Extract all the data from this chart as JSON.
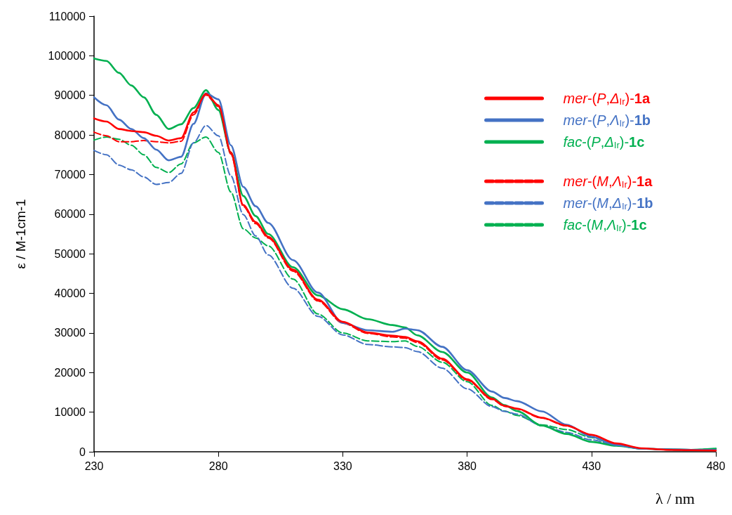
{
  "chart_data": {
    "type": "line",
    "xlabel": "λ / nm",
    "ylabel": "ε / M-1cm-1",
    "xlim": [
      230,
      480
    ],
    "xticks": [
      230,
      280,
      330,
      380,
      430,
      480
    ],
    "ylim": [
      0,
      110000
    ],
    "yticks": [
      0,
      10000,
      20000,
      30000,
      40000,
      50000,
      60000,
      70000,
      80000,
      90000,
      100000,
      110000
    ],
    "grid": false,
    "legend": "top right",
    "marker": "none",
    "x": [
      230,
      235,
      240,
      245,
      250,
      255,
      260,
      265,
      270,
      275,
      280,
      285,
      290,
      295,
      300,
      310,
      320,
      330,
      340,
      350,
      355,
      360,
      370,
      380,
      390,
      395,
      400,
      410,
      420,
      430,
      440,
      450,
      460,
      470,
      480
    ],
    "series": [
      {
        "name": "mer-(P,Δ$_{Ir}$)-1a",
        "color": "#ff0000",
        "line_style": "solid",
        "values": [
          84200,
          83400,
          81500,
          81000,
          80700,
          79800,
          78600,
          79200,
          85700,
          90400,
          87500,
          75600,
          62300,
          58000,
          54300,
          46000,
          38400,
          32800,
          30100,
          29300,
          29000,
          27900,
          23500,
          18300,
          13400,
          11600,
          10900,
          8600,
          6600,
          4300,
          2100,
          900,
          500,
          400,
          300
        ]
      },
      {
        "name": "mer-(P,Λ$_{Ir}$)-1b",
        "color": "#4472c4",
        "line_style": "solid",
        "values": [
          89500,
          87500,
          83900,
          81500,
          79200,
          76300,
          73600,
          74500,
          82800,
          90500,
          89000,
          77400,
          66900,
          62000,
          57800,
          48400,
          40200,
          32500,
          30700,
          30300,
          31100,
          30700,
          26500,
          20600,
          15200,
          13600,
          12800,
          10200,
          6800,
          3800,
          1700,
          800,
          600,
          500,
          500
        ]
      },
      {
        "name": "fac-(P,Δ$_{Ir}$)-1c",
        "color": "#00b050",
        "line_style": "solid",
        "values": [
          99300,
          98700,
          95700,
          92500,
          89500,
          85100,
          81500,
          82700,
          86800,
          91300,
          86300,
          75600,
          64600,
          59500,
          55000,
          46600,
          39500,
          36000,
          33500,
          32000,
          31400,
          29400,
          25200,
          20000,
          13700,
          11800,
          10300,
          6600,
          4500,
          2500,
          1500,
          800,
          600,
          500,
          800
        ]
      },
      {
        "name": "mer-(M,Λ$_{Ir}$)-1a",
        "color": "#ff0000",
        "line_style": "dashed",
        "values": [
          80700,
          79800,
          78300,
          78300,
          78600,
          78300,
          78000,
          78400,
          85100,
          90100,
          87200,
          75200,
          62000,
          57600,
          54000,
          45600,
          38100,
          32500,
          29900,
          29000,
          28700,
          27600,
          23200,
          18100,
          13200,
          11500,
          10800,
          8500,
          6500,
          4200,
          2000,
          800,
          500,
          400,
          300
        ]
      },
      {
        "name": "mer-(M,Δ$_{Ir}$)-1b",
        "color": "#4472c4",
        "line_style": "dashed",
        "values": [
          76100,
          75000,
          72400,
          71200,
          69400,
          67500,
          68000,
          70300,
          78000,
          82400,
          79800,
          69700,
          59900,
          54500,
          49700,
          41300,
          34200,
          29500,
          27100,
          26500,
          26300,
          25300,
          21100,
          15900,
          11400,
          10200,
          9500,
          6600,
          4900,
          3000,
          1600,
          800,
          600,
          500,
          500
        ]
      },
      {
        "name": "fac-(M,Λ$_{Ir}$)-1c",
        "color": "#00b050",
        "line_style": "dashed",
        "values": [
          78700,
          79500,
          78900,
          77400,
          75000,
          71800,
          70500,
          72700,
          78000,
          79500,
          75600,
          65600,
          56300,
          54000,
          52000,
          43600,
          34800,
          30000,
          28000,
          27800,
          28000,
          26600,
          22600,
          17700,
          11700,
          10300,
          9200,
          6800,
          5600,
          3600,
          1600,
          800,
          600,
          500,
          800
        ]
      }
    ]
  }
}
